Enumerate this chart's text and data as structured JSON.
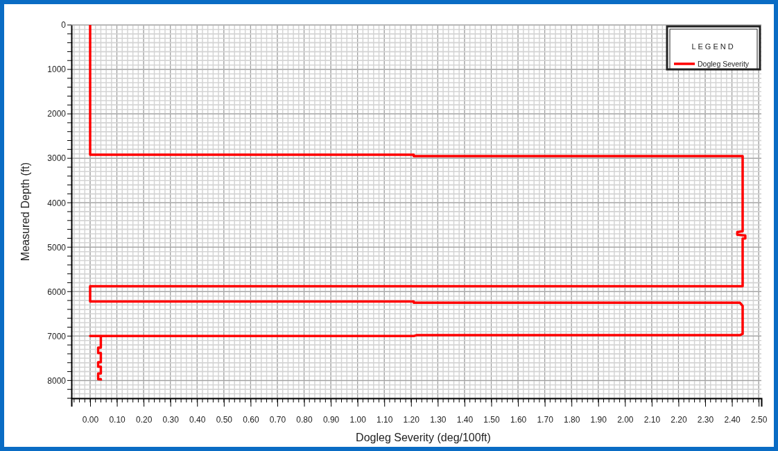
{
  "chart_data": {
    "type": "line",
    "xlabel": "Dogleg Severity (deg/100ft)",
    "ylabel": "Measured Depth (ft)",
    "legend_title": "LEGEND",
    "legend": "top right",
    "grid": true,
    "marker": "none",
    "line_style": "solid",
    "xlim": [
      -0.07,
      2.51
    ],
    "ylim": [
      8400,
      0
    ],
    "xticks": [
      {
        "value": 0,
        "label": "0.00"
      },
      {
        "value": 0.1,
        "label": "0.10"
      },
      {
        "value": 0.2,
        "label": "0.20"
      },
      {
        "value": 0.3,
        "label": "0.30"
      },
      {
        "value": 0.4,
        "label": "0.40"
      },
      {
        "value": 0.5,
        "label": "0.50"
      },
      {
        "value": 0.6,
        "label": "0.60"
      },
      {
        "value": 0.7,
        "label": "0.70"
      },
      {
        "value": 0.8,
        "label": "0.80"
      },
      {
        "value": 0.9,
        "label": "0.90"
      },
      {
        "value": 1.0,
        "label": "1.00"
      },
      {
        "value": 1.1,
        "label": "1.10"
      },
      {
        "value": 1.2,
        "label": "1.20"
      },
      {
        "value": 1.3,
        "label": "1.30"
      },
      {
        "value": 1.4,
        "label": "1.40"
      },
      {
        "value": 1.5,
        "label": "1.50"
      },
      {
        "value": 1.6,
        "label": "1.60"
      },
      {
        "value": 1.7,
        "label": "1.70"
      },
      {
        "value": 1.8,
        "label": "1.80"
      },
      {
        "value": 1.9,
        "label": "1.90"
      },
      {
        "value": 2.0,
        "label": "2.00"
      },
      {
        "value": 2.1,
        "label": "2.10"
      },
      {
        "value": 2.2,
        "label": "2.20"
      },
      {
        "value": 2.3,
        "label": "2.30"
      },
      {
        "value": 2.4,
        "label": "2.40"
      },
      {
        "value": 2.5,
        "label": "2.50"
      }
    ],
    "yticks": [
      0,
      1000,
      2000,
      3000,
      4000,
      5000,
      6000,
      7000,
      8000
    ],
    "series": [
      {
        "name": "Dogleg Severity",
        "color": "#ff0000",
        "x": [
          0,
          0,
          1.21,
          1.21,
          2.44,
          2.44,
          2.42,
          2.42,
          2.45,
          2.45,
          2.44,
          2.44,
          0,
          0,
          1.21,
          1.21,
          2.43,
          2.44,
          2.44,
          2.43,
          1.22,
          1.21,
          0,
          0.04,
          0.04,
          0.03,
          0.03,
          0.04,
          0.04,
          0.03,
          0.03,
          0.04,
          0.04,
          0.03,
          0.03,
          0.04,
          0.04
        ],
        "values": [
          0,
          2920,
          2920,
          2950,
          2950,
          4640,
          4660,
          4720,
          4740,
          4800,
          4810,
          5880,
          5880,
          6220,
          6220,
          6250,
          6250,
          6320,
          6950,
          6980,
          6980,
          7000,
          7000,
          7000,
          7260,
          7260,
          7380,
          7380,
          7590,
          7590,
          7690,
          7690,
          7840,
          7840,
          7970,
          7970,
          8000
        ]
      }
    ]
  }
}
